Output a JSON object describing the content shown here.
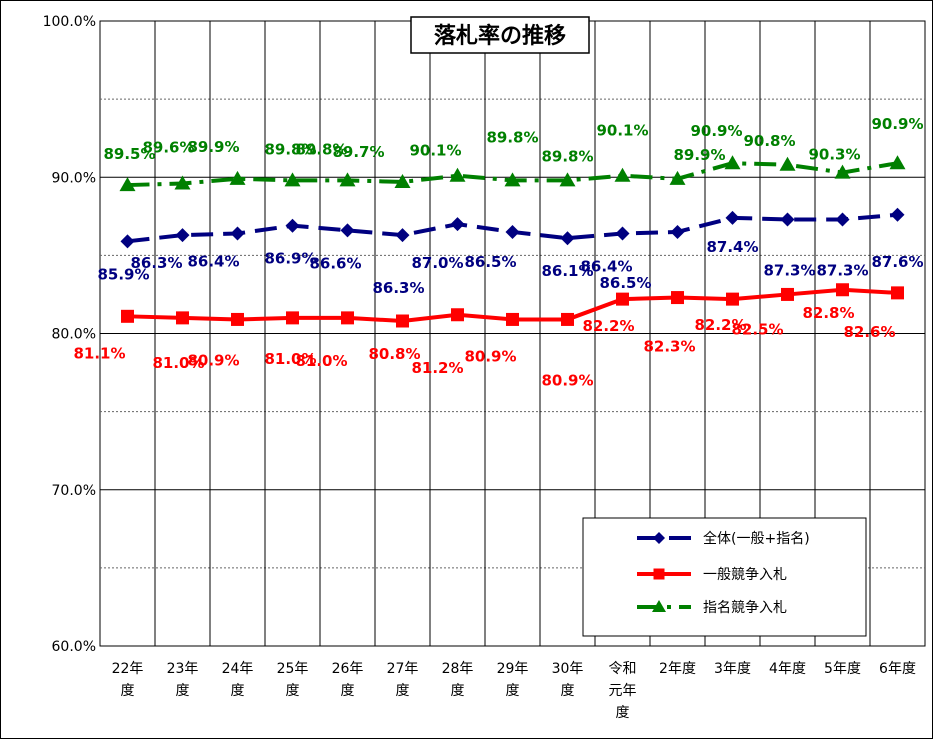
{
  "chart_data": {
    "type": "line",
    "title": "落札率の推移",
    "categories": [
      [
        "22年",
        "度"
      ],
      [
        "23年",
        "度"
      ],
      [
        "24年",
        "度"
      ],
      [
        "25年",
        "度"
      ],
      [
        "26年",
        "度"
      ],
      [
        "27年",
        "度"
      ],
      [
        "28年",
        "度"
      ],
      [
        "29年",
        "度"
      ],
      [
        "30年",
        "度"
      ],
      [
        "令和",
        "元年",
        "度"
      ],
      [
        "2年度"
      ],
      [
        "3年度"
      ],
      [
        "4年度"
      ],
      [
        "5年度"
      ],
      [
        "6年度"
      ]
    ],
    "ylim": [
      60.0,
      100.0
    ],
    "yticks": [
      "60.0%",
      "70.0%",
      "80.0%",
      "90.0%",
      "100.0%"
    ],
    "grid": "horizontal",
    "legend_position": "bottom-right",
    "series": [
      {
        "name": "全体(一般+指名)",
        "color": "#000080",
        "line_style": "dashed",
        "marker": "diamond",
        "values": [
          85.9,
          86.3,
          86.4,
          86.9,
          86.6,
          86.3,
          87.0,
          86.5,
          86.1,
          86.4,
          86.5,
          87.4,
          87.3,
          87.3,
          87.6
        ],
        "labels": [
          "85.9%",
          "86.3%",
          "86.4%",
          "86.9%",
          "86.6%",
          "86.3%",
          "87.0%",
          "86.5%",
          "86.1%",
          "86.4%",
          "86.5%",
          "87.4%",
          "87.3%",
          "87.3%",
          "87.6%"
        ]
      },
      {
        "name": "一般競争入札",
        "color": "#ff0000",
        "line_style": "solid",
        "marker": "square",
        "values": [
          81.1,
          81.0,
          80.9,
          81.0,
          81.0,
          80.8,
          81.2,
          80.9,
          80.9,
          82.2,
          82.3,
          82.2,
          82.5,
          82.8,
          82.6
        ],
        "labels": [
          "81.1%",
          "81.0%",
          "80.9%",
          "81.0%",
          "81.0%",
          "80.8%",
          "81.2%",
          "80.9%",
          "80.9%",
          "82.2%",
          "82.3%",
          "82.2%",
          "82.5%",
          "82.8%",
          "82.6%"
        ]
      },
      {
        "name": "指名競争入札",
        "color": "#008000",
        "line_style": "dash-dot",
        "marker": "triangle",
        "values": [
          89.5,
          89.6,
          89.9,
          89.8,
          89.8,
          89.7,
          90.1,
          89.8,
          89.8,
          90.1,
          89.9,
          90.9,
          90.8,
          90.3,
          90.9
        ],
        "labels": [
          "89.5%",
          "89.6%",
          "89.9%",
          "89.8%",
          "89.8%",
          "89.7%",
          "90.1%",
          "89.8%",
          "89.8%",
          "90.1%",
          "89.9%",
          "90.9%",
          "90.8%",
          "90.3%",
          "90.9%"
        ]
      }
    ]
  }
}
